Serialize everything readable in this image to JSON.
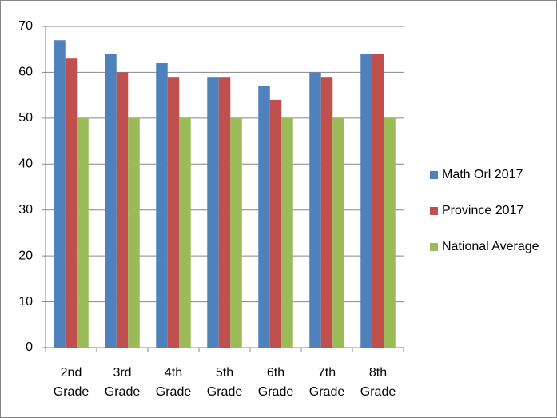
{
  "chart_data": {
    "type": "bar",
    "categories": [
      "2nd Grade",
      "3rd Grade",
      "4th Grade",
      "5th Grade",
      "6th Grade",
      "7th Grade",
      "8th Grade"
    ],
    "series": [
      {
        "name": "Math Orl 2017",
        "color": "#4f81bd",
        "values": [
          67,
          64,
          62,
          59,
          57,
          60,
          64
        ]
      },
      {
        "name": "Province 2017",
        "color": "#c0504d",
        "values": [
          63,
          60,
          59,
          59,
          54,
          59,
          64
        ]
      },
      {
        "name": "National Average",
        "color": "#9bbb59",
        "values": [
          50,
          50,
          50,
          50,
          50,
          50,
          50
        ]
      }
    ],
    "ylim": [
      0,
      70
    ],
    "yticks": [
      0,
      10,
      20,
      30,
      40,
      50,
      60,
      70
    ],
    "grid": true,
    "legend": "right"
  }
}
